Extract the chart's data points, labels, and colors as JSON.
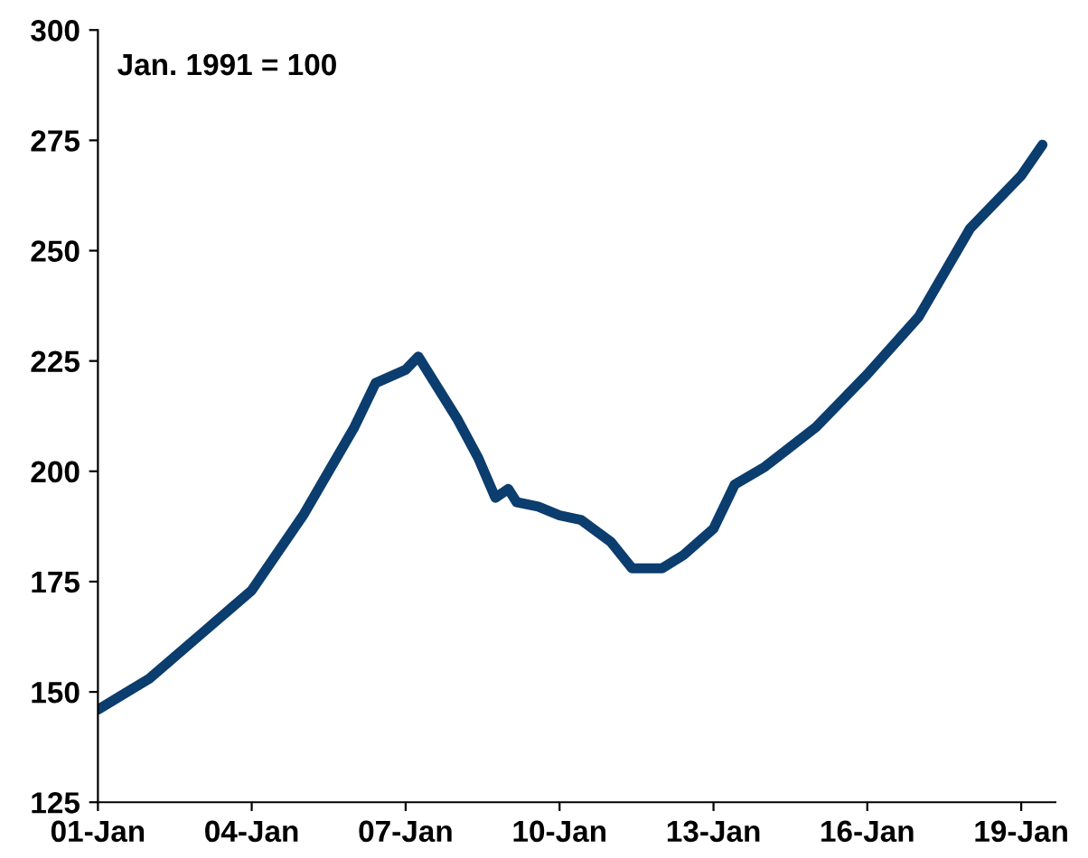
{
  "chart_data": {
    "type": "line",
    "annotations": [
      "Jan. 1991 = 100"
    ],
    "x": [
      "2001-01",
      "2002-01",
      "2003-01",
      "2004-01",
      "2005-01",
      "2006-01",
      "2006-06",
      "2007-01",
      "2007-04",
      "2008-01",
      "2008-06",
      "2008-10",
      "2009-01",
      "2009-03",
      "2009-08",
      "2010-01",
      "2010-06",
      "2011-01",
      "2011-06",
      "2012-01",
      "2012-06",
      "2013-01",
      "2013-06",
      "2014-01",
      "2015-01",
      "2016-01",
      "2017-01",
      "2018-01",
      "2019-01",
      "2019-06"
    ],
    "series": [
      {
        "color": "#0b3d6e",
        "values": [
          146,
          153,
          163,
          173,
          190,
          210,
          220,
          223,
          226,
          212,
          203,
          194,
          196,
          193,
          192,
          190,
          189,
          184,
          178,
          178,
          181,
          187,
          197,
          201,
          210,
          222,
          235,
          255,
          267,
          274
        ]
      }
    ],
    "xlim": [
      "2001-01",
      "2019-09"
    ],
    "xticks": [
      {
        "value": "2001-01",
        "label": "01-Jan"
      },
      {
        "value": "2004-01",
        "label": "04-Jan"
      },
      {
        "value": "2007-01",
        "label": "07-Jan"
      },
      {
        "value": "2010-01",
        "label": "10-Jan"
      },
      {
        "value": "2013-01",
        "label": "13-Jan"
      },
      {
        "value": "2016-01",
        "label": "16-Jan"
      },
      {
        "value": "2019-01",
        "label": "19-Jan"
      }
    ],
    "ylim": [
      125,
      300
    ],
    "yticks": [
      125,
      150,
      175,
      200,
      225,
      250,
      275,
      300
    ],
    "grid": false,
    "legend": false,
    "marker": "none",
    "line_style": "solid"
  }
}
